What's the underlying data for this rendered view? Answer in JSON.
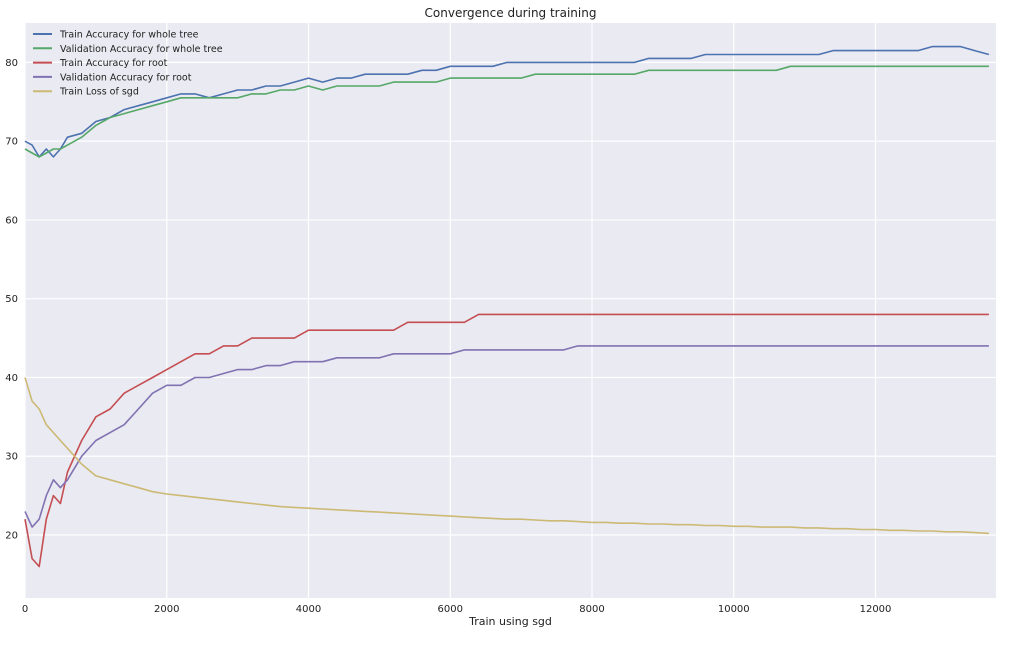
{
  "chart_data": {
    "type": "line",
    "title": "Convergence during training",
    "xlabel": "Train using sgd",
    "ylabel": "",
    "xlim": [
      0,
      13700
    ],
    "ylim": [
      12,
      79.6
    ],
    "ylim_note": "",
    "x_ticks": [
      0,
      2000,
      4000,
      6000,
      8000,
      10000,
      12000
    ],
    "y_ticks": [
      20,
      30,
      40,
      50,
      60,
      70,
      80
    ],
    "grid": true,
    "legend_position": "top-left",
    "background_color": "#eaeaf2",
    "series": [
      {
        "name": "Train Accuracy for whole tree",
        "color": "#4c72b0",
        "x": [
          0,
          100,
          200,
          300,
          400,
          500,
          600,
          800,
          1000,
          1200,
          1400,
          1600,
          1800,
          2000,
          2200,
          2400,
          2600,
          2800,
          3000,
          3200,
          3400,
          3600,
          3800,
          4000,
          4200,
          4400,
          4600,
          4800,
          5000,
          5200,
          5400,
          5600,
          5800,
          6000,
          6200,
          6400,
          6600,
          6800,
          7000,
          7200,
          7400,
          7600,
          7800,
          8000,
          8200,
          8400,
          8600,
          8800,
          9000,
          9200,
          9400,
          9600,
          9800,
          10000,
          10200,
          10400,
          10600,
          10800,
          11000,
          11200,
          11400,
          11600,
          11800,
          12000,
          12200,
          12400,
          12600,
          12800,
          13000,
          13200,
          13400,
          13600
        ],
        "values": [
          70,
          69.5,
          68,
          69,
          68,
          69,
          70.5,
          71,
          72.5,
          73,
          74,
          74.5,
          75,
          75.5,
          76,
          76,
          75.5,
          76,
          76.5,
          76.5,
          77,
          77,
          77.5,
          78,
          77.5,
          78,
          78,
          78.5,
          78.5,
          78.5,
          78.5,
          79,
          79,
          79.5,
          79.5,
          79.5,
          79.5,
          80,
          80,
          80,
          80,
          80,
          80,
          80,
          80,
          80,
          80,
          80.5,
          80.5,
          80.5,
          80.5,
          81,
          81,
          81,
          81,
          81,
          81,
          81,
          81,
          81,
          81.5,
          81.5,
          81.5,
          81.5,
          81.5,
          81.5,
          81.5,
          82,
          82,
          82,
          81.5,
          81
        ]
      },
      {
        "name": "Validation Accuracy for whole tree",
        "color": "#55a868",
        "x": [
          0,
          100,
          200,
          300,
          400,
          500,
          600,
          800,
          1000,
          1200,
          1400,
          1600,
          1800,
          2000,
          2200,
          2400,
          2600,
          2800,
          3000,
          3200,
          3400,
          3600,
          3800,
          4000,
          4200,
          4400,
          4600,
          4800,
          5000,
          5200,
          5400,
          5600,
          5800,
          6000,
          6200,
          6400,
          6600,
          6800,
          7000,
          7200,
          7400,
          7600,
          7800,
          8000,
          8200,
          8400,
          8600,
          8800,
          9000,
          9200,
          9400,
          9600,
          9800,
          10000,
          10200,
          10400,
          10600,
          10800,
          11000,
          11200,
          11400,
          11600,
          11800,
          12000,
          12200,
          12400,
          12600,
          12800,
          13000,
          13200,
          13400,
          13600
        ],
        "values": [
          69,
          68.5,
          68,
          68.5,
          69,
          69,
          69.5,
          70.5,
          72,
          73,
          73.5,
          74,
          74.5,
          75,
          75.5,
          75.5,
          75.5,
          75.5,
          75.5,
          76,
          76,
          76.5,
          76.5,
          77,
          76.5,
          77,
          77,
          77,
          77,
          77.5,
          77.5,
          77.5,
          77.5,
          78,
          78,
          78,
          78,
          78,
          78,
          78.5,
          78.5,
          78.5,
          78.5,
          78.5,
          78.5,
          78.5,
          78.5,
          79,
          79,
          79,
          79,
          79,
          79,
          79,
          79,
          79,
          79,
          79.5,
          79.5,
          79.5,
          79.5,
          79.5,
          79.5,
          79.5,
          79.5,
          79.5,
          79.5,
          79.5,
          79.5,
          79.5,
          79.5,
          79.5
        ]
      },
      {
        "name": "Train Accuracy for root",
        "color": "#c44e52",
        "x": [
          0,
          100,
          200,
          300,
          400,
          500,
          600,
          800,
          1000,
          1200,
          1400,
          1600,
          1800,
          2000,
          2200,
          2400,
          2600,
          2800,
          3000,
          3200,
          3400,
          3600,
          3800,
          4000,
          4200,
          4400,
          4600,
          4800,
          5000,
          5200,
          5400,
          5600,
          5800,
          6000,
          6200,
          6400,
          6600,
          6800,
          7000,
          7200,
          7400,
          7600,
          7800,
          8000,
          8200,
          8400,
          8600,
          8800,
          9000,
          9200,
          9400,
          9600,
          9800,
          10000,
          10200,
          10400,
          10600,
          10800,
          11000,
          11200,
          11400,
          11600,
          11800,
          12000,
          12200,
          12400,
          12600,
          12800,
          13000,
          13200,
          13400,
          13600
        ],
        "values": [
          22,
          17,
          16,
          22,
          25,
          24,
          28,
          32,
          35,
          36,
          38,
          39,
          40,
          41,
          42,
          43,
          43,
          44,
          44,
          45,
          45,
          45,
          45,
          46,
          46,
          46,
          46,
          46,
          46,
          46,
          47,
          47,
          47,
          47,
          47,
          48,
          48,
          48,
          48,
          48,
          48,
          48,
          48,
          48,
          48,
          48,
          48,
          48,
          48,
          48,
          48,
          48,
          48,
          48,
          48,
          48,
          48,
          48,
          48,
          48,
          48,
          48,
          48,
          48,
          48,
          48,
          48,
          48,
          48,
          48,
          48,
          48
        ]
      },
      {
        "name": "Validation Accuracy for root",
        "color": "#8172b2",
        "x": [
          0,
          100,
          200,
          300,
          400,
          500,
          600,
          800,
          1000,
          1200,
          1400,
          1600,
          1800,
          2000,
          2200,
          2400,
          2600,
          2800,
          3000,
          3200,
          3400,
          3600,
          3800,
          4000,
          4200,
          4400,
          4600,
          4800,
          5000,
          5200,
          5400,
          5600,
          5800,
          6000,
          6200,
          6400,
          6600,
          6800,
          7000,
          7200,
          7400,
          7600,
          7800,
          8000,
          8200,
          8400,
          8600,
          8800,
          9000,
          9200,
          9400,
          9600,
          9800,
          10000,
          10200,
          10400,
          10600,
          10800,
          11000,
          11200,
          11400,
          11600,
          11800,
          12000,
          12200,
          12400,
          12600,
          12800,
          13000,
          13200,
          13400,
          13600
        ],
        "values": [
          23,
          21,
          22,
          25,
          27,
          26,
          27,
          30,
          32,
          33,
          34,
          36,
          38,
          39,
          39,
          40,
          40,
          40.5,
          41,
          41,
          41.5,
          41.5,
          42,
          42,
          42,
          42.5,
          42.5,
          42.5,
          42.5,
          43,
          43,
          43,
          43,
          43,
          43.5,
          43.5,
          43.5,
          43.5,
          43.5,
          43.5,
          43.5,
          43.5,
          44,
          44,
          44,
          44,
          44,
          44,
          44,
          44,
          44,
          44,
          44,
          44,
          44,
          44,
          44,
          44,
          44,
          44,
          44,
          44,
          44,
          44,
          44,
          44,
          44,
          44,
          44,
          44,
          44,
          44
        ]
      },
      {
        "name": "Train Loss of sgd",
        "color": "#ccb974",
        "x": [
          0,
          100,
          200,
          300,
          400,
          500,
          600,
          800,
          1000,
          1200,
          1400,
          1600,
          1800,
          2000,
          2200,
          2400,
          2600,
          2800,
          3000,
          3200,
          3400,
          3600,
          3800,
          4000,
          4200,
          4400,
          4600,
          4800,
          5000,
          5200,
          5400,
          5600,
          5800,
          6000,
          6200,
          6400,
          6600,
          6800,
          7000,
          7200,
          7400,
          7600,
          7800,
          8000,
          8200,
          8400,
          8600,
          8800,
          9000,
          9200,
          9400,
          9600,
          9800,
          10000,
          10200,
          10400,
          10600,
          10800,
          11000,
          11200,
          11400,
          11600,
          11800,
          12000,
          12200,
          12400,
          12600,
          12800,
          13000,
          13200,
          13400,
          13600
        ],
        "values": [
          40,
          37,
          36,
          34,
          33,
          32,
          31,
          29,
          27.5,
          27,
          26.5,
          26,
          25.5,
          25.2,
          25,
          24.8,
          24.6,
          24.4,
          24.2,
          24,
          23.8,
          23.6,
          23.5,
          23.4,
          23.3,
          23.2,
          23.1,
          23,
          22.9,
          22.8,
          22.7,
          22.6,
          22.5,
          22.4,
          22.3,
          22.2,
          22.1,
          22,
          22,
          21.9,
          21.8,
          21.8,
          21.7,
          21.6,
          21.6,
          21.5,
          21.5,
          21.4,
          21.4,
          21.3,
          21.3,
          21.2,
          21.2,
          21.1,
          21.1,
          21,
          21,
          21,
          20.9,
          20.9,
          20.8,
          20.8,
          20.7,
          20.7,
          20.6,
          20.6,
          20.5,
          20.5,
          20.4,
          20.4,
          20.3,
          20.2
        ]
      }
    ]
  }
}
